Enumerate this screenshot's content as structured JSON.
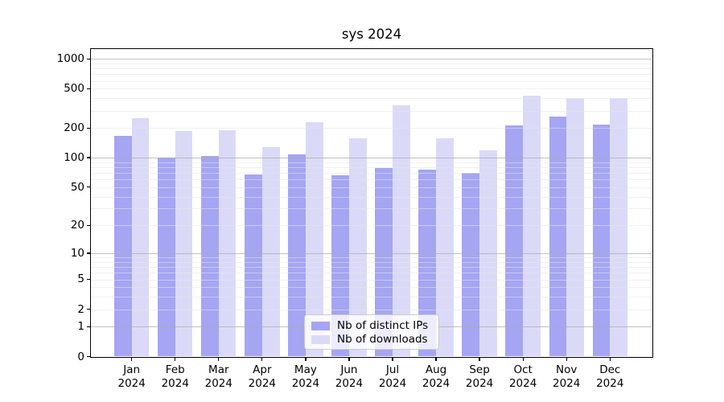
{
  "title": "sys 2024",
  "chart_data": {
    "type": "bar",
    "title": "sys 2024",
    "yscale": "log1p",
    "ylim": [
      0,
      1300
    ],
    "grid": true,
    "legend_position": "lower center",
    "yticks": [
      0,
      1,
      2,
      5,
      10,
      20,
      50,
      100,
      200,
      500,
      1000
    ],
    "categories": [
      "Jan 2024",
      "Feb 2024",
      "Mar 2024",
      "Apr 2024",
      "May 2024",
      "Jun 2024",
      "Jul 2024",
      "Aug 2024",
      "Sep 2024",
      "Oct 2024",
      "Nov 2024",
      "Dec 2024"
    ],
    "series": [
      {
        "name": "Nb of distinct IPs",
        "color": "#a5a5f3",
        "values": [
          165,
          100,
          104,
          67,
          109,
          66,
          78,
          75,
          70,
          214,
          261,
          215
        ]
      },
      {
        "name": "Nb of downloads",
        "color": "#dadaf8",
        "values": [
          253,
          186,
          190,
          127,
          228,
          158,
          338,
          157,
          119,
          428,
          398,
          404
        ]
      }
    ]
  }
}
